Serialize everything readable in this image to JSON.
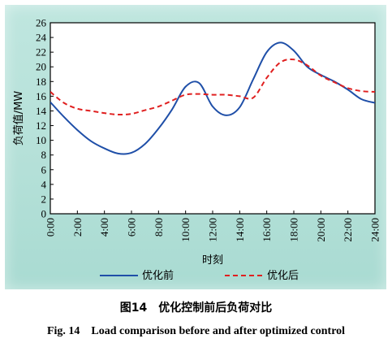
{
  "figure": {
    "caption_cn": "图14　优化控制前后负荷对比",
    "caption_en": "Fig. 14　Load comparison before and after optimized control"
  },
  "chart_data": {
    "type": "line",
    "xlabel": "时刻",
    "ylabel": "负荷值/MW",
    "xlim": [
      0,
      24
    ],
    "ylim": [
      0,
      26
    ],
    "x_ticks": [
      "0:00",
      "2:00",
      "4:00",
      "6:00",
      "8:00",
      "10:00",
      "12:00",
      "14:00",
      "16:00",
      "18:00",
      "20:00",
      "22:00",
      "24:00"
    ],
    "y_ticks": [
      0,
      2,
      4,
      6,
      8,
      10,
      12,
      14,
      16,
      18,
      20,
      22,
      24,
      26
    ],
    "grid": false,
    "legend_position": "bottom",
    "x": [
      0,
      1,
      2,
      3,
      4,
      5,
      6,
      7,
      8,
      9,
      10,
      11,
      12,
      13,
      14,
      15,
      16,
      17,
      18,
      19,
      20,
      21,
      22,
      23,
      24
    ],
    "series": [
      {
        "name": "优化前",
        "color": "#1f4fa8",
        "dash": "solid",
        "values": [
          15.2,
          13.2,
          11.4,
          9.9,
          8.9,
          8.2,
          8.3,
          9.5,
          11.6,
          14.2,
          17.3,
          17.8,
          14.6,
          13.4,
          14.5,
          18.3,
          22.0,
          23.3,
          22.2,
          20.0,
          18.9,
          18.0,
          16.9,
          15.6,
          15.1
        ]
      },
      {
        "name": "优化后",
        "color": "#e02020",
        "dash": "dashed",
        "values": [
          16.6,
          15.1,
          14.3,
          14.0,
          13.7,
          13.5,
          13.6,
          14.1,
          14.6,
          15.4,
          16.2,
          16.3,
          16.2,
          16.2,
          16.0,
          15.8,
          18.5,
          20.6,
          21.0,
          20.2,
          18.8,
          17.9,
          17.1,
          16.7,
          16.6
        ]
      }
    ]
  }
}
